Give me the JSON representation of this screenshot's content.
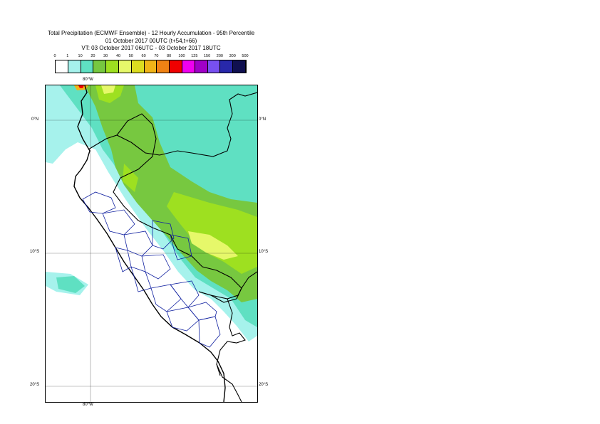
{
  "title": {
    "line1": "Total Precipitation (ECMWF Ensemble) - 12 Hourly Accumulation - 95th Percentile",
    "line2": "01 October 2017 00UTC (t+54,t+66)",
    "line3": "VT: 03 October 2017 06UTC - 03 October 2017 18UTC"
  },
  "legend": {
    "boundaries": [
      "0",
      "1",
      "10",
      "20",
      "30",
      "40",
      "50",
      "60",
      "70",
      "80",
      "100",
      "125",
      "150",
      "200",
      "300",
      "500"
    ],
    "colors": [
      "#ffffff",
      "#a6f2ec",
      "#5fe0c2",
      "#77c840",
      "#9ee020",
      "#e6f86a",
      "#dcdc20",
      "#f0b418",
      "#f08214",
      "#f00000",
      "#f000f0",
      "#a000c8",
      "#7850f0",
      "#2828aa",
      "#101050"
    ]
  },
  "axes": {
    "lon_top": "80°W",
    "lon_bottom": "80°W",
    "lat_left": [
      "0°N",
      "10°S",
      "20°S"
    ],
    "lat_right": [
      "0°N",
      "10°S",
      "20°S"
    ]
  }
}
